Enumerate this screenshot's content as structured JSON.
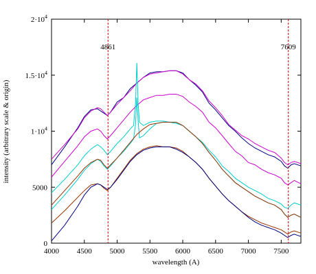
{
  "chart_data": {
    "type": "line",
    "title": "",
    "xlabel": "wavelength (A)",
    "ylabel": "intensity (arbitrary scale & origin)",
    "xlim": [
      4000,
      7800
    ],
    "ylim": [
      0,
      20000
    ],
    "x_ticks": [
      {
        "value": 4000,
        "label": "4000"
      },
      {
        "value": 4500,
        "label": "4500"
      },
      {
        "value": 5000,
        "label": "5000"
      },
      {
        "value": 5500,
        "label": "5500"
      },
      {
        "value": 6000,
        "label": "6000"
      },
      {
        "value": 6500,
        "label": "6500"
      },
      {
        "value": 7000,
        "label": "7000"
      },
      {
        "value": 7500,
        "label": "7500"
      }
    ],
    "y_ticks": [
      {
        "value": 0,
        "base": "0",
        "exp": ""
      },
      {
        "value": 5000,
        "base": "5000",
        "exp": ""
      },
      {
        "value": 10000,
        "base": "1·10",
        "exp": "4"
      },
      {
        "value": 15000,
        "base": "1.5·10",
        "exp": "4"
      },
      {
        "value": 20000,
        "base": "2·10",
        "exp": "4"
      }
    ],
    "grid": false,
    "annotations": [
      {
        "x": 4861,
        "label": "4861",
        "color": "#cc0000",
        "style": "dashed"
      },
      {
        "x": 7609,
        "label": "7609",
        "color": "#cc0000",
        "style": "dashed"
      }
    ],
    "series": [
      {
        "color": "#000080",
        "x": [
          4000,
          4200,
          4400,
          4500,
          4600,
          4700,
          4750,
          4800,
          4850,
          4900,
          5000,
          5100,
          5200,
          5300,
          5400,
          5500,
          5600,
          5700,
          5800,
          5900,
          6000,
          6100,
          6200,
          6300,
          6400,
          6500,
          6600,
          6700,
          6800,
          6900,
          7000,
          7100,
          7200,
          7300,
          7400,
          7500,
          7550,
          7600,
          7650,
          7700,
          7800
        ],
        "y": [
          7000,
          8600,
          10300,
          11300,
          11900,
          12000,
          11800,
          11600,
          11400,
          11700,
          12600,
          13000,
          13800,
          14300,
          14800,
          15200,
          15300,
          15300,
          15400,
          15400,
          15200,
          14600,
          14100,
          13500,
          12500,
          11900,
          11200,
          10500,
          10000,
          9400,
          8900,
          8500,
          8200,
          7900,
          7700,
          7300,
          6900,
          6700,
          7000,
          7100,
          6900
        ]
      },
      {
        "color": "#cc00cc",
        "x": [
          4000,
          4200,
          4400,
          4500,
          4600,
          4700,
          4750,
          4800,
          4850,
          4900,
          5000,
          5100,
          5200,
          5300,
          5400,
          5500,
          5600,
          5700,
          5800,
          5900,
          6000,
          6100,
          6200,
          6300,
          6400,
          6500,
          6600,
          6700,
          6800,
          6900,
          7000,
          7100,
          7200,
          7300,
          7400,
          7500,
          7550,
          7600,
          7650,
          7700,
          7800
        ],
        "y": [
          7500,
          8800,
          10200,
          11200,
          11800,
          12100,
          12000,
          11700,
          11400,
          11700,
          12400,
          13000,
          13600,
          14300,
          14800,
          15100,
          15200,
          15300,
          15400,
          15400,
          15100,
          14600,
          14200,
          13600,
          12700,
          12100,
          11400,
          10600,
          10100,
          9600,
          9300,
          8900,
          8600,
          8300,
          8100,
          7600,
          7200,
          7000,
          7200,
          7300,
          7100
        ]
      },
      {
        "color": "#cc00cc",
        "x": [
          4000,
          4200,
          4400,
          4500,
          4600,
          4700,
          4750,
          4800,
          4850,
          4900,
          5000,
          5100,
          5200,
          5300,
          5400,
          5500,
          5600,
          5700,
          5800,
          5900,
          6000,
          6100,
          6200,
          6300,
          6400,
          6500,
          6600,
          6700,
          6800,
          6900,
          7000,
          7100,
          7200,
          7300,
          7400,
          7500,
          7550,
          7600,
          7650,
          7700,
          7800
        ],
        "y": [
          5900,
          7300,
          8700,
          9500,
          10000,
          10200,
          10000,
          9600,
          9300,
          9600,
          10300,
          11000,
          11700,
          12300,
          12800,
          13000,
          13200,
          13200,
          13300,
          13300,
          13100,
          12600,
          12200,
          11700,
          10800,
          10300,
          9600,
          8900,
          8200,
          7800,
          7200,
          7000,
          6600,
          6300,
          6100,
          5800,
          5400,
          5200,
          5400,
          5600,
          5300
        ]
      },
      {
        "color": "#00cccc",
        "x": [
          4000,
          4200,
          4400,
          4500,
          4600,
          4700,
          4750,
          4800,
          4850,
          4900,
          5000,
          5100,
          5200,
          5250,
          5280,
          5300,
          5320,
          5340,
          5400,
          5500,
          5600,
          5700,
          5800,
          5900,
          6000,
          6100,
          6200,
          6300,
          6400,
          6500,
          6600,
          6700,
          6800,
          6900,
          7000,
          7100,
          7200,
          7300,
          7400,
          7500,
          7550,
          7600,
          7650,
          7700,
          7800
        ],
        "y": [
          4500,
          5700,
          7000,
          7800,
          8400,
          8800,
          8600,
          8300,
          7900,
          8200,
          8900,
          9500,
          10200,
          10500,
          12500,
          16100,
          12500,
          10800,
          10500,
          10800,
          10900,
          10900,
          10800,
          10700,
          10500,
          10000,
          9500,
          9000,
          8300,
          7700,
          6900,
          6400,
          5800,
          5400,
          5000,
          4700,
          4400,
          4000,
          3800,
          3500,
          3200,
          3100,
          3400,
          3600,
          3400
        ]
      },
      {
        "color": "#00cccc",
        "x": [
          4000,
          4200,
          4400,
          4500,
          4600,
          4700,
          4750,
          4800,
          4850,
          4900,
          5000,
          5100,
          5200,
          5250,
          5280,
          5300,
          5320,
          5340,
          5400,
          5500,
          5600,
          5700,
          5800,
          5900,
          6000,
          6100,
          6200,
          6300,
          6400,
          6500,
          6600,
          6700,
          6800,
          6900,
          7000,
          7100,
          7200,
          7300,
          7400,
          7500,
          7550,
          7600,
          7650,
          7700,
          7800
        ],
        "y": [
          3000,
          4300,
          5700,
          6500,
          7100,
          7500,
          7300,
          6900,
          6600,
          6900,
          7600,
          8200,
          8900,
          9300,
          10600,
          13000,
          10900,
          9400,
          9600,
          10200,
          10700,
          10800,
          10800,
          10800,
          10500,
          10000,
          9500,
          8900,
          8100,
          7400,
          6600,
          6000,
          5400,
          5000,
          4600,
          4200,
          3900,
          3600,
          3400,
          3000,
          2600,
          2300,
          2500,
          2600,
          2300
        ]
      },
      {
        "color": "#993300",
        "x": [
          4000,
          4200,
          4400,
          4500,
          4600,
          4700,
          4750,
          4800,
          4850,
          4900,
          5000,
          5100,
          5200,
          5300,
          5400,
          5500,
          5600,
          5700,
          5800,
          5900,
          6000,
          6100,
          6200,
          6300,
          6400,
          6500,
          6600,
          6700,
          6800,
          6900,
          7000,
          7100,
          7200,
          7300,
          7400,
          7500,
          7550,
          7600,
          7650,
          7700,
          7800
        ],
        "y": [
          3400,
          4700,
          6000,
          6700,
          7200,
          7500,
          7400,
          7000,
          6700,
          7000,
          7600,
          8300,
          9000,
          9700,
          10200,
          10600,
          10700,
          10800,
          10800,
          10800,
          10500,
          10000,
          9500,
          8900,
          8100,
          7400,
          6600,
          6000,
          5400,
          5000,
          4600,
          4200,
          3900,
          3600,
          3400,
          3000,
          2600,
          2300,
          2500,
          2600,
          2300
        ]
      },
      {
        "color": "#993300",
        "x": [
          4000,
          4200,
          4400,
          4500,
          4600,
          4700,
          4750,
          4800,
          4850,
          4900,
          5000,
          5100,
          5200,
          5300,
          5400,
          5500,
          5600,
          5700,
          5800,
          5900,
          6000,
          6100,
          6200,
          6300,
          6400,
          6500,
          6600,
          6700,
          6800,
          6900,
          7000,
          7100,
          7200,
          7300,
          7400,
          7500,
          7550,
          7600,
          7650,
          7700,
          7800
        ],
        "y": [
          1800,
          2900,
          4100,
          4700,
          5200,
          5300,
          5200,
          4900,
          4700,
          5000,
          5800,
          6600,
          7400,
          8000,
          8400,
          8600,
          8700,
          8600,
          8600,
          8500,
          8200,
          7700,
          7200,
          6600,
          5800,
          5100,
          4400,
          3800,
          3300,
          2800,
          2400,
          2100,
          1800,
          1600,
          1400,
          1200,
          1000,
          800,
          1000,
          1100,
          900
        ]
      },
      {
        "color": "#000080",
        "x": [
          4000,
          4200,
          4400,
          4500,
          4600,
          4700,
          4750,
          4800,
          4850,
          4900,
          5000,
          5100,
          5200,
          5300,
          5400,
          5500,
          5600,
          5700,
          5800,
          5900,
          6000,
          6100,
          6200,
          6300,
          6400,
          6500,
          6600,
          6700,
          6800,
          6900,
          7000,
          7100,
          7200,
          7300,
          7400,
          7500,
          7550,
          7600,
          7650,
          7700,
          7800
        ],
        "y": [
          200,
          1600,
          3300,
          4300,
          5000,
          5300,
          5200,
          5000,
          4800,
          5000,
          5700,
          6500,
          7300,
          7900,
          8300,
          8500,
          8600,
          8600,
          8600,
          8400,
          8100,
          7700,
          7200,
          6600,
          5800,
          5100,
          4400,
          3800,
          3300,
          2800,
          2300,
          1900,
          1600,
          1400,
          1200,
          900,
          700,
          500,
          700,
          800,
          600
        ]
      }
    ]
  }
}
